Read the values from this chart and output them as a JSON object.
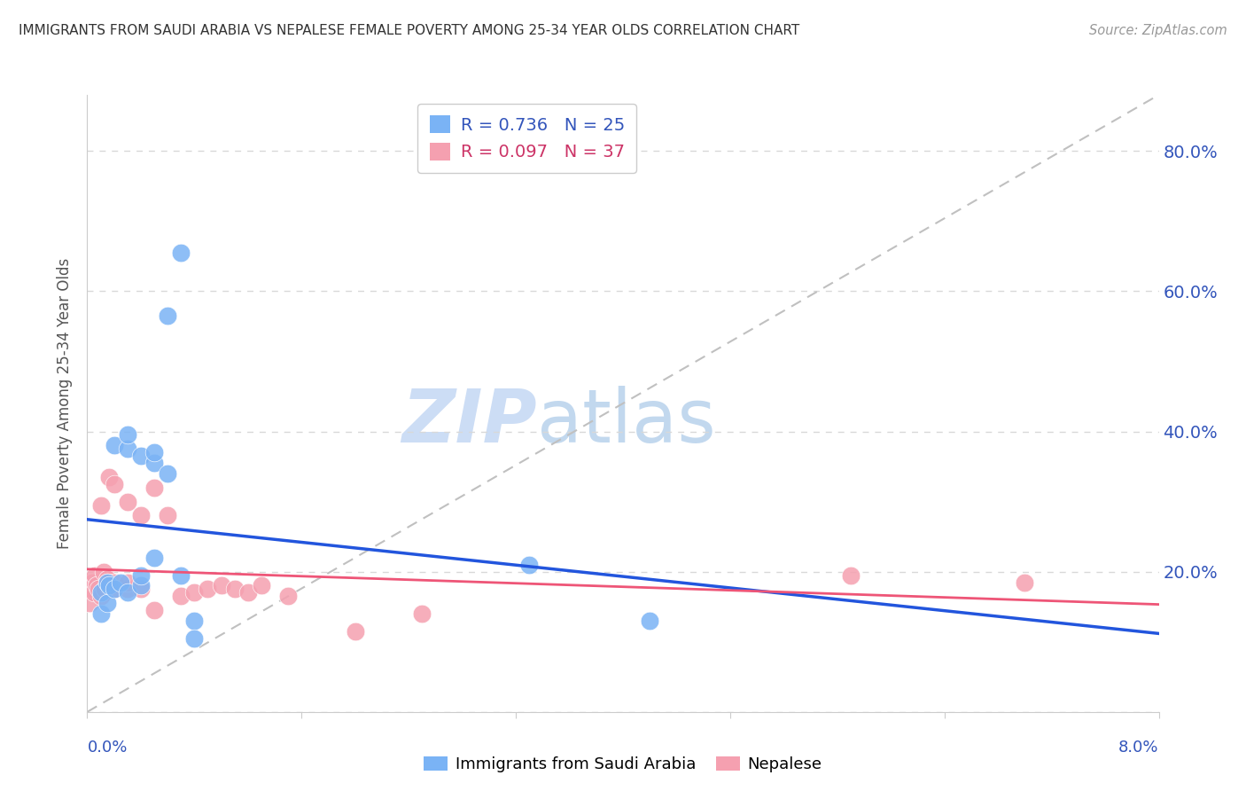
{
  "title": "IMMIGRANTS FROM SAUDI ARABIA VS NEPALESE FEMALE POVERTY AMONG 25-34 YEAR OLDS CORRELATION CHART",
  "source": "Source: ZipAtlas.com",
  "ylabel": "Female Poverty Among 25-34 Year Olds",
  "y_ticks": [
    0.0,
    0.2,
    0.4,
    0.6,
    0.8
  ],
  "y_tick_labels": [
    "",
    "20.0%",
    "40.0%",
    "60.0%",
    "80.0%"
  ],
  "x_range": [
    0.0,
    0.08
  ],
  "y_range": [
    0.0,
    0.88
  ],
  "series1_label": "Immigrants from Saudi Arabia",
  "series1_R": "0.736",
  "series1_N": "25",
  "series1_color": "#7ab3f5",
  "series1_x": [
    0.001,
    0.001,
    0.0015,
    0.0015,
    0.0016,
    0.002,
    0.002,
    0.0025,
    0.003,
    0.003,
    0.003,
    0.004,
    0.004,
    0.004,
    0.005,
    0.005,
    0.005,
    0.006,
    0.006,
    0.007,
    0.007,
    0.008,
    0.008,
    0.033,
    0.042
  ],
  "series1_y": [
    0.14,
    0.17,
    0.155,
    0.185,
    0.18,
    0.175,
    0.38,
    0.185,
    0.17,
    0.375,
    0.395,
    0.365,
    0.18,
    0.195,
    0.355,
    0.22,
    0.37,
    0.34,
    0.565,
    0.655,
    0.195,
    0.13,
    0.105,
    0.21,
    0.13
  ],
  "series2_label": "Nepalese",
  "series2_R": "0.097",
  "series2_N": "37",
  "series2_color": "#f5a0b0",
  "series2_x": [
    0.0002,
    0.0003,
    0.0004,
    0.0005,
    0.0006,
    0.0007,
    0.0008,
    0.001,
    0.001,
    0.0012,
    0.0013,
    0.0015,
    0.0015,
    0.0016,
    0.002,
    0.002,
    0.002,
    0.003,
    0.003,
    0.003,
    0.004,
    0.004,
    0.005,
    0.005,
    0.006,
    0.007,
    0.008,
    0.009,
    0.01,
    0.011,
    0.012,
    0.013,
    0.015,
    0.02,
    0.025,
    0.057,
    0.07
  ],
  "series2_y": [
    0.155,
    0.175,
    0.185,
    0.17,
    0.195,
    0.18,
    0.175,
    0.165,
    0.295,
    0.2,
    0.175,
    0.19,
    0.185,
    0.335,
    0.185,
    0.175,
    0.325,
    0.175,
    0.185,
    0.3,
    0.28,
    0.175,
    0.32,
    0.145,
    0.28,
    0.165,
    0.17,
    0.175,
    0.18,
    0.175,
    0.17,
    0.18,
    0.165,
    0.115,
    0.14,
    0.195,
    0.185
  ],
  "trend_color_blue": "#2255dd",
  "trend_color_pink": "#ee5577",
  "diagonal_color": "#c0c0c0",
  "watermark_zip": "ZIP",
  "watermark_atlas": "atlas",
  "background_color": "#ffffff",
  "grid_color": "#d8d8d8",
  "axis_color": "#cccccc",
  "tick_label_color": "#3355bb",
  "title_color": "#333333",
  "source_color": "#999999",
  "ylabel_color": "#555555"
}
